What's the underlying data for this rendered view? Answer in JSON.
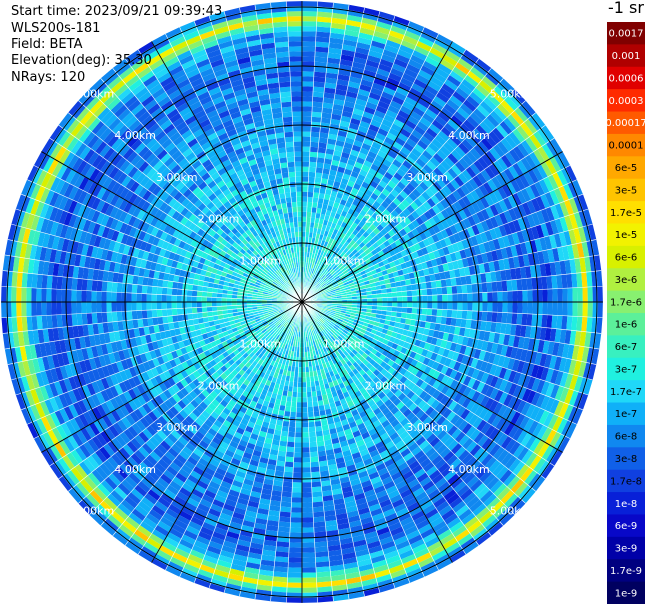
{
  "info": {
    "start_time": "Start time: 2023/09/21 09:39:43",
    "device": "WLS200s-181",
    "field": "Field: BETA",
    "elevation": "Elevation(deg): 35.30",
    "nrays": "NRays: 120"
  },
  "colorbar": {
    "title": "-1 sr",
    "labels": [
      "0.0017",
      "0.001",
      "0.0006",
      "0.0003",
      "0.00017",
      "0.0001",
      "6e-5",
      "3e-5",
      "1.7e-5",
      "1e-5",
      "6e-6",
      "3e-6",
      "1.7e-6",
      "1e-6",
      "6e-7",
      "3e-7",
      "1.7e-7",
      "1e-7",
      "6e-8",
      "3e-8",
      "1.7e-8",
      "1e-8",
      "6e-9",
      "3e-9",
      "1.7e-9",
      "1e-9"
    ],
    "colors": [
      "#800000",
      "#b00000",
      "#e00000",
      "#ff2a00",
      "#ff5a00",
      "#ff8800",
      "#ffa800",
      "#ffc400",
      "#ffdf00",
      "#f2f200",
      "#d8f000",
      "#b0f040",
      "#88f070",
      "#5cf09a",
      "#38f0c0",
      "#20f0e0",
      "#20d8f8",
      "#10b0f8",
      "#1088f0",
      "#1060e8",
      "#1040e0",
      "#0820d8",
      "#0808c8",
      "#0000a8",
      "#000080",
      "#000060"
    ]
  },
  "chart_data": {
    "type": "heatmap",
    "projection": "polar-ppi",
    "title": "",
    "field": "BETA",
    "units": "-1 sr",
    "elevation_deg": 35.3,
    "n_rays": 120,
    "range_rings_km": [
      1,
      2,
      3,
      4,
      5
    ],
    "range_ring_labels": [
      "1.00km",
      "2.00km",
      "3.00km",
      "4.00km",
      "5.00km"
    ],
    "max_range_km": 5.1,
    "color_scale": "log",
    "value_range": [
      1e-09,
      0.0017
    ],
    "radial_profile": [
      {
        "range_km": 0.5,
        "beta": 3e-07
      },
      {
        "range_km": 1.5,
        "beta": 2e-07
      },
      {
        "range_km": 2.5,
        "beta": 1e-07
      },
      {
        "range_km": 3.5,
        "beta": 5e-08
      },
      {
        "range_km": 4.2,
        "beta": 3e-08
      },
      {
        "range_km": 4.6,
        "beta": 1e-07
      },
      {
        "range_km": 4.8,
        "beta": 1e-05
      },
      {
        "range_km": 5.0,
        "beta": 3e-08
      }
    ]
  }
}
